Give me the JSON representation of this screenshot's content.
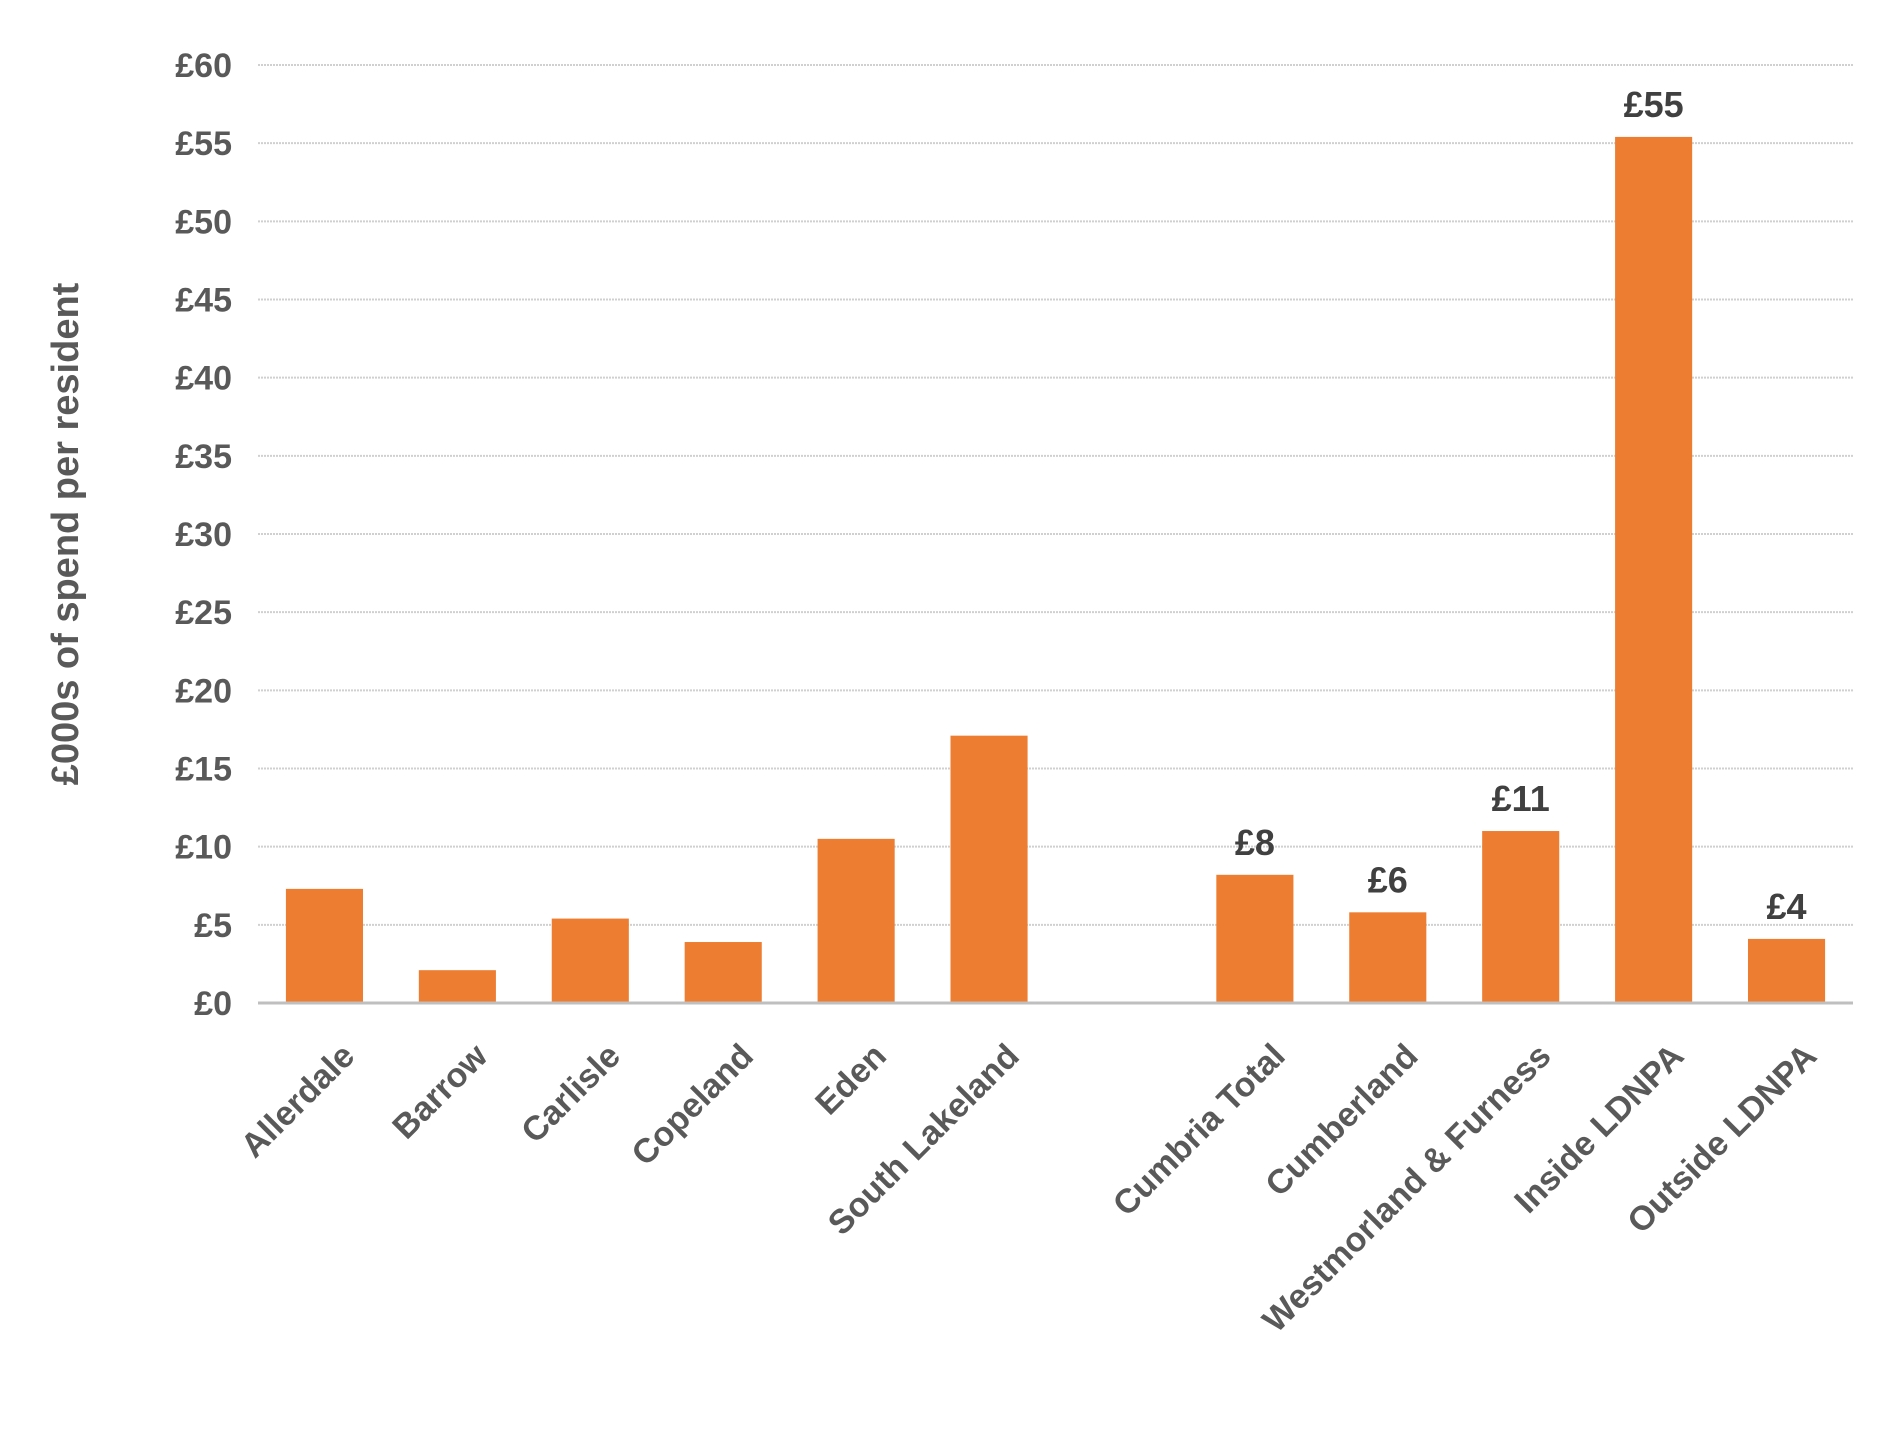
{
  "chart_data": {
    "type": "bar",
    "categories": [
      "Allerdale",
      "Barrow",
      "Carlisle",
      "Copeland",
      "Eden",
      "South Lakeland",
      "",
      "Cumbria Total",
      "Cumberland",
      "Westmorland & Furness",
      "Inside LDNPA",
      "Outside LDNPA"
    ],
    "values": [
      7.3,
      2.1,
      5.4,
      3.9,
      10.5,
      17.1,
      null,
      8.2,
      5.8,
      11.0,
      55.4,
      4.1
    ],
    "data_labels": [
      "",
      "",
      "",
      "",
      "",
      "",
      "",
      "£8",
      "£6",
      "£11",
      "£55",
      "£4"
    ],
    "title": "",
    "xlabel": "",
    "ylabel": "£000s of spend per resident",
    "ylim": [
      0,
      60
    ],
    "yticks": [
      0,
      5,
      10,
      15,
      20,
      25,
      30,
      35,
      40,
      45,
      50,
      55,
      60
    ],
    "ytick_labels": [
      "£0",
      "£5",
      "£10",
      "£15",
      "£20",
      "£25",
      "£30",
      "£35",
      "£40",
      "£45",
      "£50",
      "£55",
      "£60"
    ],
    "grid": true,
    "legend": "none",
    "bar_color": "#ED7D31"
  }
}
